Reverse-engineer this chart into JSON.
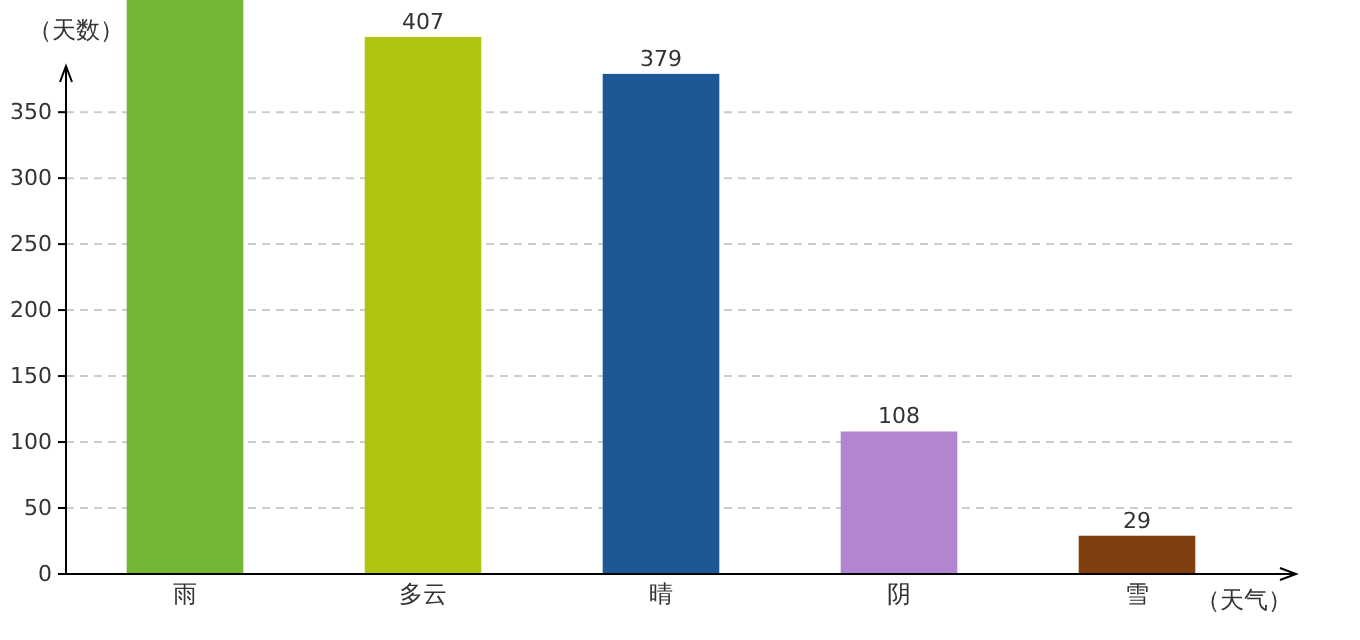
{
  "chart_data": {
    "type": "bar",
    "xlabel": "（天气）",
    "ylabel": "（天数）",
    "categories": [
      "雨",
      "多云",
      "晴",
      "阴",
      "雪"
    ],
    "values": [
      435,
      407,
      379,
      108,
      29
    ],
    "colors": [
      "#72b836",
      "#b1c40f",
      "#1d5796",
      "#b385d1",
      "#813e0e"
    ],
    "value_labels": [
      null,
      "407",
      "379",
      "108",
      "29"
    ],
    "ylim": [
      0,
      435
    ],
    "yticks": [
      0,
      50,
      100,
      150,
      200,
      250,
      300,
      350
    ],
    "grid": "y"
  }
}
